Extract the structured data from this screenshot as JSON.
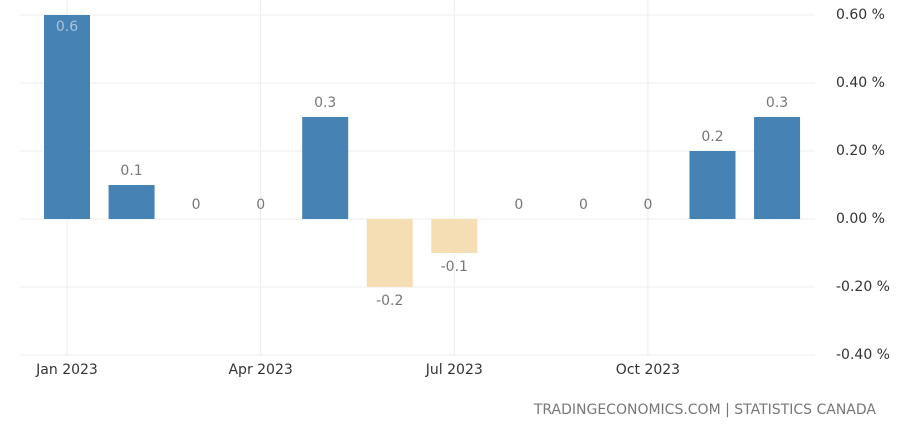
{
  "chart_data": {
    "type": "bar",
    "categories": [
      "Jan 2023",
      null,
      null,
      "Apr 2023",
      null,
      null,
      "Jul 2023",
      null,
      null,
      "Oct 2023",
      null,
      null
    ],
    "values": [
      0.6,
      0.1,
      0,
      0,
      0.3,
      -0.2,
      -0.1,
      0,
      0,
      0,
      0.2,
      0.3
    ],
    "color": "#4682b4",
    "negative_color": "#f5deb3",
    "ylim": [
      -0.4,
      0.6
    ],
    "yticks": [
      {
        "value": 0.6,
        "label": "0.60 %"
      },
      {
        "value": 0.4,
        "label": "0.40 %"
      },
      {
        "value": 0.2,
        "label": "0.20 %"
      },
      {
        "value": 0,
        "label": "0.00 %"
      },
      {
        "value": -0.2,
        "label": "-0.20 %"
      },
      {
        "value": -0.4,
        "label": "-0.40 %"
      }
    ],
    "grid": true,
    "source": "TRADINGECONOMICS.COM | STATISTICS CANADA"
  }
}
